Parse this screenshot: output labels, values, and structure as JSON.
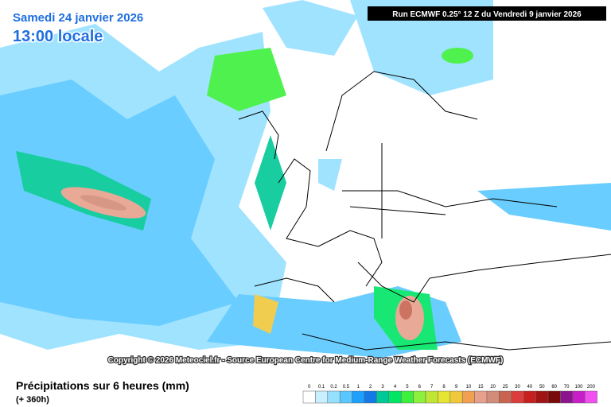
{
  "header": {
    "date": "Samedi 24 janvier 2026",
    "time": "13:00 locale",
    "run": "Run ECMWF 0.25° 12 Z du Vendredi 9 janvier 2026"
  },
  "copyright": "Copyright © 2026 Meteociel.fr - Source European Centre for Medium-Range Weather Forecasts (ECMWF)",
  "footer": {
    "title": "Précipitations sur 6 heures (mm)",
    "lead": "(+ 360h)"
  },
  "legend": {
    "labels": [
      0,
      0.1,
      0.2,
      0.5,
      1,
      2,
      3,
      4,
      5,
      6,
      7,
      8,
      9,
      10,
      15,
      20,
      25,
      30,
      40,
      50,
      60,
      70,
      100,
      200
    ],
    "colors": [
      "#ffffff",
      "#c8f0ff",
      "#96e0ff",
      "#5ac8ff",
      "#1ea0ff",
      "#1478e6",
      "#00c896",
      "#00e664",
      "#3cf03c",
      "#8cf03c",
      "#bee632",
      "#e6e632",
      "#f0c83c",
      "#f0a050",
      "#e6a08c",
      "#d28c78",
      "#c86450",
      "#dc3c3c",
      "#c81e1e",
      "#a01414",
      "#780a0a",
      "#8c148c",
      "#c81ec8",
      "#f050f0"
    ]
  }
}
